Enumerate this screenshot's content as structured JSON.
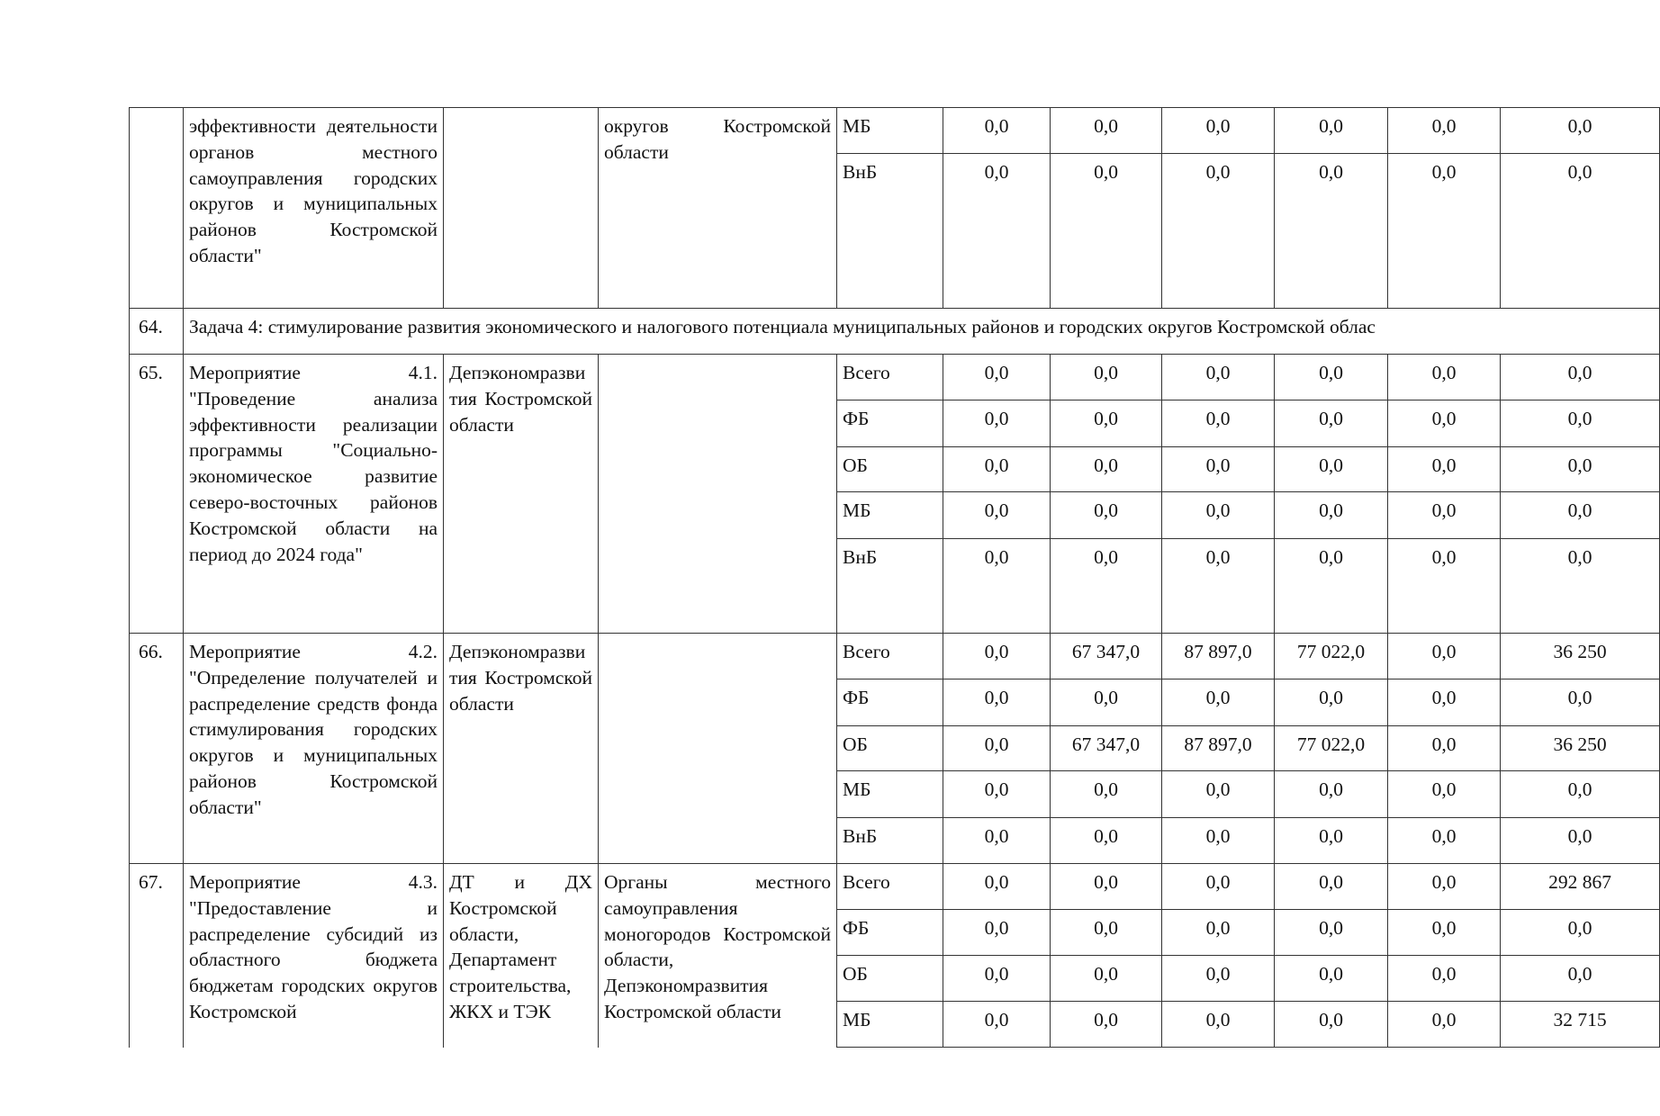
{
  "groups": [
    {
      "num": "",
      "name": "эффективности деятельности органов местного самоуправления городских округов и муниципальных районов Костромской области\"",
      "executor": "",
      "coexecutor": "округов Костромской области",
      "rows": [
        {
          "src": "МБ",
          "values": [
            "0,0",
            "0,0",
            "0,0",
            "0,0",
            "0,0",
            "0,0"
          ]
        },
        {
          "src": "ВнБ",
          "values": [
            "0,0",
            "0,0",
            "0,0",
            "0,0",
            "0,0",
            "0,0"
          ]
        }
      ]
    },
    {
      "num": "64.",
      "task": "Задача 4: стимулирование развития экономического и налогового потенциала муниципальных районов и городских округов Костромской облас"
    },
    {
      "num": "65.",
      "name": "Мероприятие 4.1. \"Проведение анализа эффективности реализации программы \"Социально-экономическое развитие северо-восточных районов Костромской области на период до 2024 года\"",
      "executor": "Депэкономразвития Костромской области",
      "coexecutor": "",
      "rows": [
        {
          "src": "Всего",
          "values": [
            "0,0",
            "0,0",
            "0,0",
            "0,0",
            "0,0",
            "0,0"
          ]
        },
        {
          "src": "ФБ",
          "values": [
            "0,0",
            "0,0",
            "0,0",
            "0,0",
            "0,0",
            "0,0"
          ]
        },
        {
          "src": "ОБ",
          "values": [
            "0,0",
            "0,0",
            "0,0",
            "0,0",
            "0,0",
            "0,0"
          ]
        },
        {
          "src": "МБ",
          "values": [
            "0,0",
            "0,0",
            "0,0",
            "0,0",
            "0,0",
            "0,0"
          ]
        },
        {
          "src": "ВнБ",
          "values": [
            "0,0",
            "0,0",
            "0,0",
            "0,0",
            "0,0",
            "0,0"
          ]
        }
      ]
    },
    {
      "num": "66.",
      "name": "Мероприятие 4.2. \"Определение получателей и распределение средств фонда стимулирования городских округов и муниципальных районов Костромской области\"",
      "executor": "Депэкономразвития Костромской области",
      "coexecutor": "",
      "rows": [
        {
          "src": "Всего",
          "values": [
            "0,0",
            "67 347,0",
            "87 897,0",
            "77 022,0",
            "0,0",
            "36 250"
          ]
        },
        {
          "src": "ФБ",
          "values": [
            "0,0",
            "0,0",
            "0,0",
            "0,0",
            "0,0",
            "0,0"
          ]
        },
        {
          "src": "ОБ",
          "values": [
            "0,0",
            "67 347,0",
            "87 897,0",
            "77 022,0",
            "0,0",
            "36 250"
          ]
        },
        {
          "src": "МБ",
          "values": [
            "0,0",
            "0,0",
            "0,0",
            "0,0",
            "0,0",
            "0,0"
          ]
        },
        {
          "src": "ВнБ",
          "values": [
            "0,0",
            "0,0",
            "0,0",
            "0,0",
            "0,0",
            "0,0"
          ]
        }
      ]
    },
    {
      "num": "67.",
      "name": "Мероприятие 4.3. \"Предоставление и распределение субсидий из областного бюджета бюджетам городских округов Костромской",
      "executor": "ДТ и ДХ Костромской области, Департамент строительства, ЖКХ и ТЭК",
      "coexecutor": "Органы местного самоуправления моногородов Костромской области, Депэкономразвития Костромской области",
      "rows": [
        {
          "src": "Всего",
          "values": [
            "0,0",
            "0,0",
            "0,0",
            "0,0",
            "0,0",
            "292 867"
          ]
        },
        {
          "src": "ФБ",
          "values": [
            "0,0",
            "0,0",
            "0,0",
            "0,0",
            "0,0",
            "0,0"
          ]
        },
        {
          "src": "ОБ",
          "values": [
            "0,0",
            "0,0",
            "0,0",
            "0,0",
            "0,0",
            "0,0"
          ]
        },
        {
          "src": "МБ",
          "values": [
            "0,0",
            "0,0",
            "0,0",
            "0,0",
            "0,0",
            "32 715"
          ]
        }
      ]
    }
  ]
}
